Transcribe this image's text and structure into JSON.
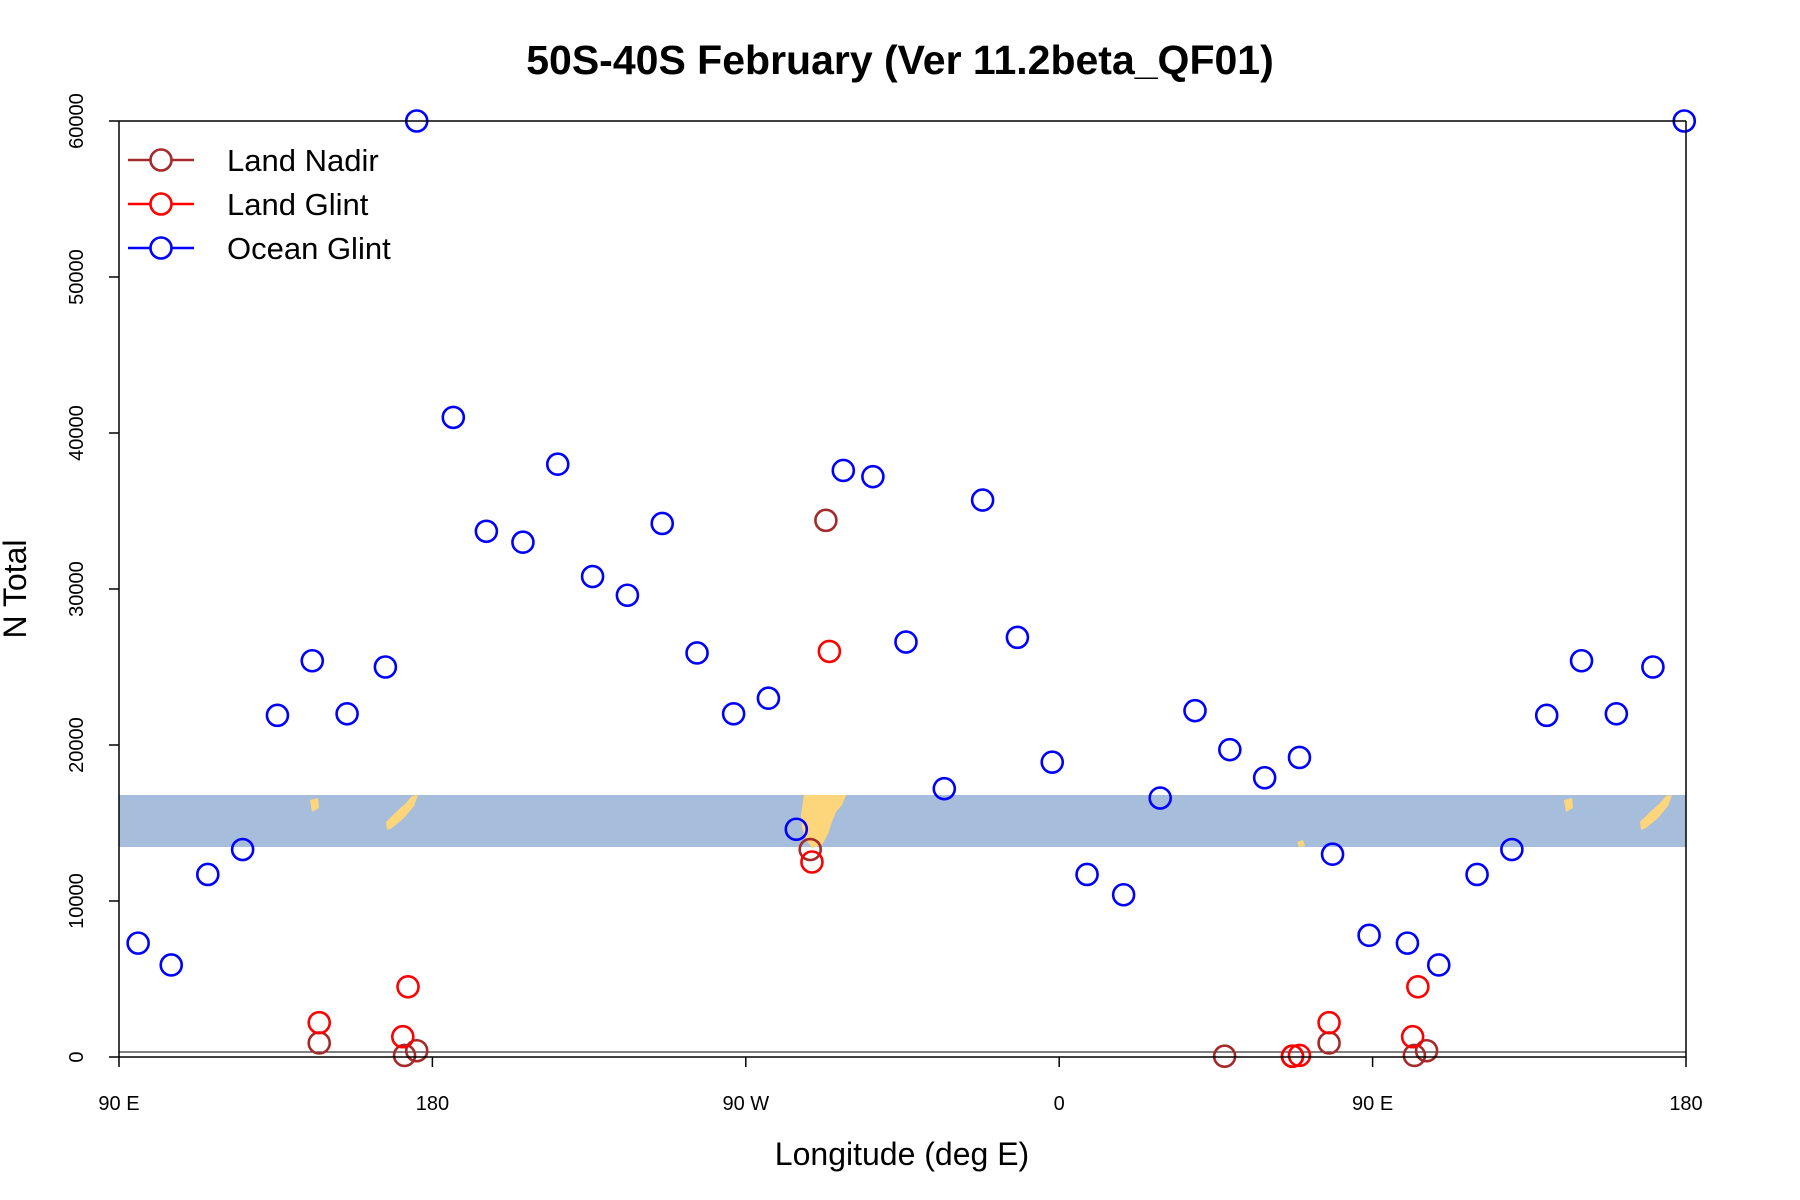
{
  "chart_data": {
    "type": "scatter",
    "title": "50S-40S February (Ver 11.2beta_QF01)",
    "xlabel": "Longitude (deg E)",
    "ylabel": "N Total",
    "xlim": [
      90,
      540
    ],
    "ylim": [
      0,
      60000
    ],
    "x_ticks": [
      {
        "value": 90,
        "label": "90 E"
      },
      {
        "value": 180,
        "label": "180"
      },
      {
        "value": 270,
        "label": "90 W"
      },
      {
        "value": 360,
        "label": "0"
      },
      {
        "value": 450,
        "label": "90 E"
      },
      {
        "value": 540,
        "label": "180"
      }
    ],
    "y_ticks": [
      {
        "value": 0,
        "label": "0"
      },
      {
        "value": 10000,
        "label": "10000"
      },
      {
        "value": 20000,
        "label": "20000"
      },
      {
        "value": 30000,
        "label": "30000"
      },
      {
        "value": 40000,
        "label": "40000"
      },
      {
        "value": 50000,
        "label": "50000"
      },
      {
        "value": 60000,
        "label": "60000"
      }
    ],
    "legend_position": "top-left",
    "map_inset": {
      "y_range": [
        13500,
        16800
      ],
      "ocean_color": "#a6bddb",
      "land_color": "#fdd57a"
    },
    "series": [
      {
        "name": "Land Nadir",
        "color": "#a52a2a",
        "points": [
          [
            147.5,
            900
          ],
          [
            172,
            100
          ],
          [
            175.5,
            400
          ],
          [
            288.5,
            13300
          ],
          [
            293,
            34400
          ],
          [
            407.5,
            50
          ],
          [
            427,
            50
          ],
          [
            437.5,
            900
          ],
          [
            462,
            100
          ],
          [
            465.5,
            400
          ]
        ]
      },
      {
        "name": "Land Glint",
        "color": "#ff0000",
        "points": [
          [
            147.5,
            2200
          ],
          [
            171.5,
            1300
          ],
          [
            173,
            4500
          ],
          [
            289,
            12500
          ],
          [
            294,
            26000
          ],
          [
            427,
            50
          ],
          [
            429,
            100
          ],
          [
            437.5,
            2200
          ],
          [
            461.5,
            1300
          ],
          [
            463,
            4500
          ]
        ]
      },
      {
        "name": "Ocean Glint",
        "color": "#0000ff",
        "points": [
          [
            95.5,
            7300
          ],
          [
            105,
            5900
          ],
          [
            115.5,
            11700
          ],
          [
            125.5,
            13300
          ],
          [
            135.5,
            21900
          ],
          [
            145.5,
            25400
          ],
          [
            155.5,
            22000
          ],
          [
            166.5,
            25000
          ],
          [
            175.5,
            60000
          ],
          [
            186,
            41000
          ],
          [
            195.5,
            33700
          ],
          [
            206,
            33000
          ],
          [
            216,
            38000
          ],
          [
            226,
            30800
          ],
          [
            236,
            29600
          ],
          [
            246,
            34200
          ],
          [
            256,
            25900
          ],
          [
            266.5,
            22000
          ],
          [
            276.5,
            23000
          ],
          [
            284.5,
            14600
          ],
          [
            298,
            37600
          ],
          [
            306.5,
            37200
          ],
          [
            316,
            26600
          ],
          [
            327,
            17200
          ],
          [
            338,
            35700
          ],
          [
            348,
            26900
          ],
          [
            358,
            18900
          ],
          [
            368,
            11700
          ],
          [
            378.5,
            10400
          ],
          [
            389,
            16600
          ],
          [
            399,
            22200
          ],
          [
            409,
            19700
          ],
          [
            419,
            17900
          ],
          [
            429,
            19200
          ],
          [
            438.5,
            13000
          ],
          [
            449,
            7800
          ],
          [
            460,
            7300
          ],
          [
            469,
            5900
          ],
          [
            480,
            11700
          ],
          [
            490,
            13300
          ],
          [
            500,
            21900
          ],
          [
            510,
            25400
          ],
          [
            520,
            22000
          ],
          [
            530.5,
            25000
          ],
          [
            539.5,
            60000
          ]
        ]
      }
    ]
  }
}
